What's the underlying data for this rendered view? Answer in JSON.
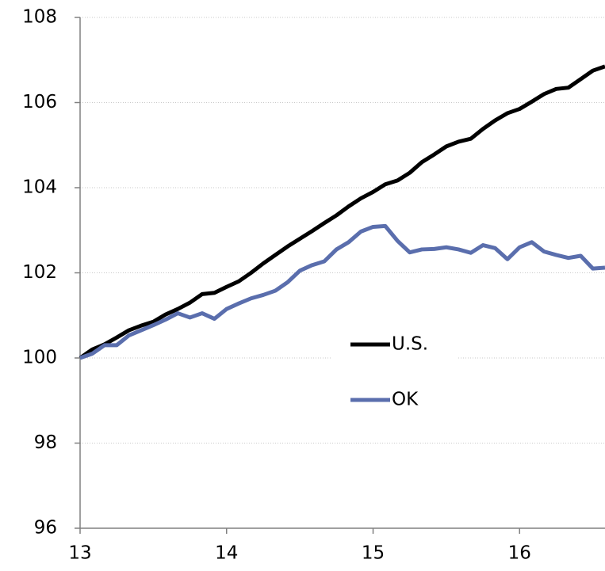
{
  "chart_data": {
    "type": "line",
    "x": [
      13,
      13.083,
      13.167,
      13.25,
      13.333,
      13.417,
      13.5,
      13.583,
      13.667,
      13.75,
      13.833,
      13.917,
      14,
      14.083,
      14.167,
      14.25,
      14.333,
      14.417,
      14.5,
      14.583,
      14.667,
      14.75,
      14.833,
      14.917,
      15,
      15.083,
      15.167,
      15.25,
      15.333,
      15.417,
      15.5,
      15.583,
      15.667,
      15.75,
      15.833,
      15.917,
      16,
      16.083,
      16.167,
      16.25,
      16.333,
      16.417,
      16.5,
      16.583
    ],
    "series": [
      {
        "name": "U.S.",
        "color": "#000000",
        "values": [
          100,
          100.2,
          100.32,
          100.48,
          100.65,
          100.76,
          100.85,
          101.02,
          101.15,
          101.3,
          101.5,
          101.53,
          101.67,
          101.8,
          102.0,
          102.22,
          102.42,
          102.62,
          102.8,
          102.98,
          103.17,
          103.35,
          103.56,
          103.75,
          103.9,
          104.08,
          104.17,
          104.35,
          104.6,
          104.78,
          104.97,
          105.08,
          105.15,
          105.38,
          105.58,
          105.75,
          105.85,
          106.02,
          106.2,
          106.32,
          106.35,
          106.55,
          106.75,
          106.85
        ]
      },
      {
        "name": "OK",
        "color": "#5a6ead",
        "values": [
          100,
          100.1,
          100.3,
          100.3,
          100.53,
          100.65,
          100.77,
          100.9,
          101.05,
          100.95,
          101.05,
          100.92,
          101.15,
          101.28,
          101.4,
          101.48,
          101.58,
          101.78,
          102.05,
          102.18,
          102.27,
          102.55,
          102.72,
          102.97,
          103.08,
          103.1,
          102.75,
          102.48,
          102.55,
          102.56,
          102.6,
          102.55,
          102.47,
          102.65,
          102.58,
          102.32,
          102.6,
          102.72,
          102.5,
          102.42,
          102.35,
          102.4,
          102.1,
          102.12
        ]
      }
    ],
    "xlim": [
      13,
      16.583
    ],
    "xticks": [
      13,
      14,
      15,
      16
    ],
    "ylim": [
      96,
      108
    ],
    "yticks": [
      96,
      98,
      100,
      102,
      104,
      106,
      108
    ],
    "grid": true,
    "legend_position": "center"
  }
}
